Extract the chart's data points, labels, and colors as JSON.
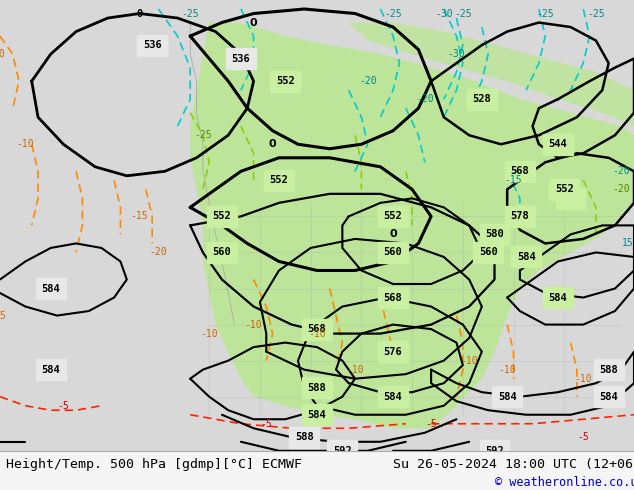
{
  "title_left": "Height/Temp. 500 hPa [gdmp][°C] ECMWF",
  "title_right": "Su 26-05-2024 18:00 UTC (12+06)",
  "copyright": "© weatheronline.co.uk",
  "bg_color": "#d0d0d0",
  "map_bg_color": "#e8e8e8",
  "green_fill_color": "#c8f0a0",
  "fig_width": 6.34,
  "fig_height": 4.9,
  "dpi": 100,
  "bottom_bar_color": "#f0f0f0",
  "title_fontsize": 9.5,
  "copyright_color": "#0000cc"
}
